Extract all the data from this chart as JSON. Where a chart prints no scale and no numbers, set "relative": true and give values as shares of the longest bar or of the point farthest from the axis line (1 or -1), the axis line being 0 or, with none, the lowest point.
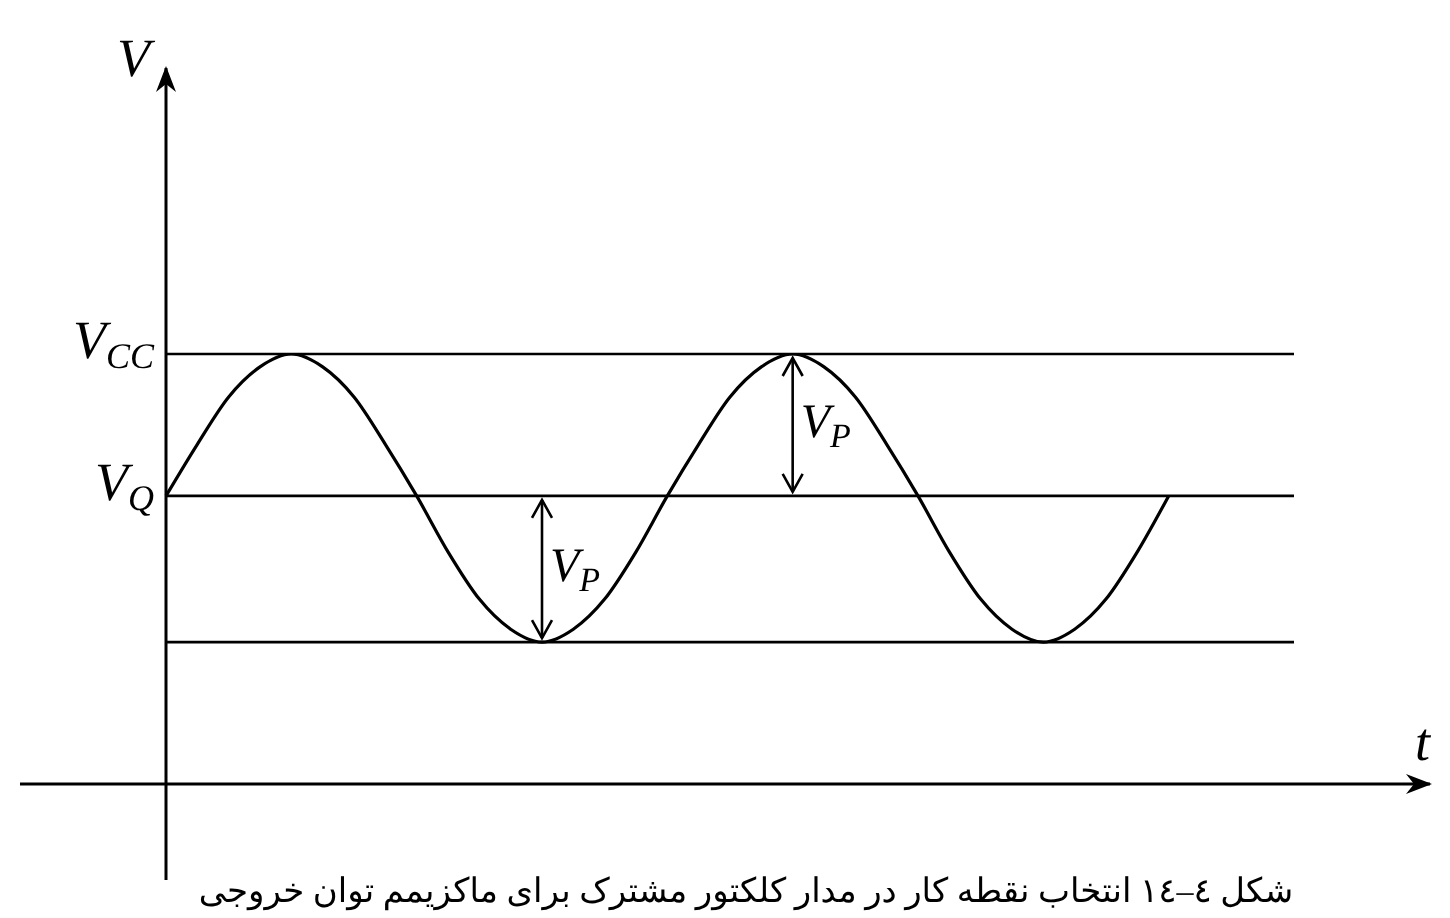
{
  "chart_data": {
    "type": "line",
    "relative": true,
    "xlabel": "t",
    "ylabel": "V",
    "marker": "none",
    "categories": [
      null,
      null,
      null,
      null,
      null,
      null,
      null,
      null,
      null,
      null,
      null,
      null,
      null,
      null,
      null,
      null,
      null,
      null,
      null,
      null,
      null,
      null,
      null,
      null,
      null,
      null,
      null,
      null,
      null,
      null,
      null,
      null,
      null,
      null,
      null,
      null,
      null
    ],
    "series": [
      {
        "color": "#000000",
        "values": [
          0.67,
          0.79,
          0.9,
          0.97,
          1,
          0.97,
          0.9,
          0.79,
          0.67,
          0.54,
          0.43,
          0.36,
          0.33,
          0.36,
          0.43,
          0.54,
          0.67,
          0.79,
          0.9,
          0.97,
          1,
          0.97,
          0.9,
          0.79,
          0.67,
          0.54,
          0.43,
          0.36,
          0.33,
          0.36,
          0.43,
          0.54,
          0.67,
          null,
          null,
          null,
          null
        ]
      }
    ],
    "ref_lines": [
      {
        "axis": "y",
        "value": 1,
        "label": "V$_{CC}$",
        "color": "#000000"
      },
      {
        "axis": "y",
        "value": 0.67,
        "label": "V$_{Q}$",
        "color": "#000000"
      },
      {
        "axis": "y",
        "value": 0.33,
        "label": null,
        "color": "#000000"
      }
    ],
    "annotations": [
      "V$_{P}$",
      "V$_{P}$",
      "شکل ٤–١٤ انتخاب نقطه کار در مدار کلکتور مشترک برای ماکزیمم توان خروجی"
    ]
  }
}
